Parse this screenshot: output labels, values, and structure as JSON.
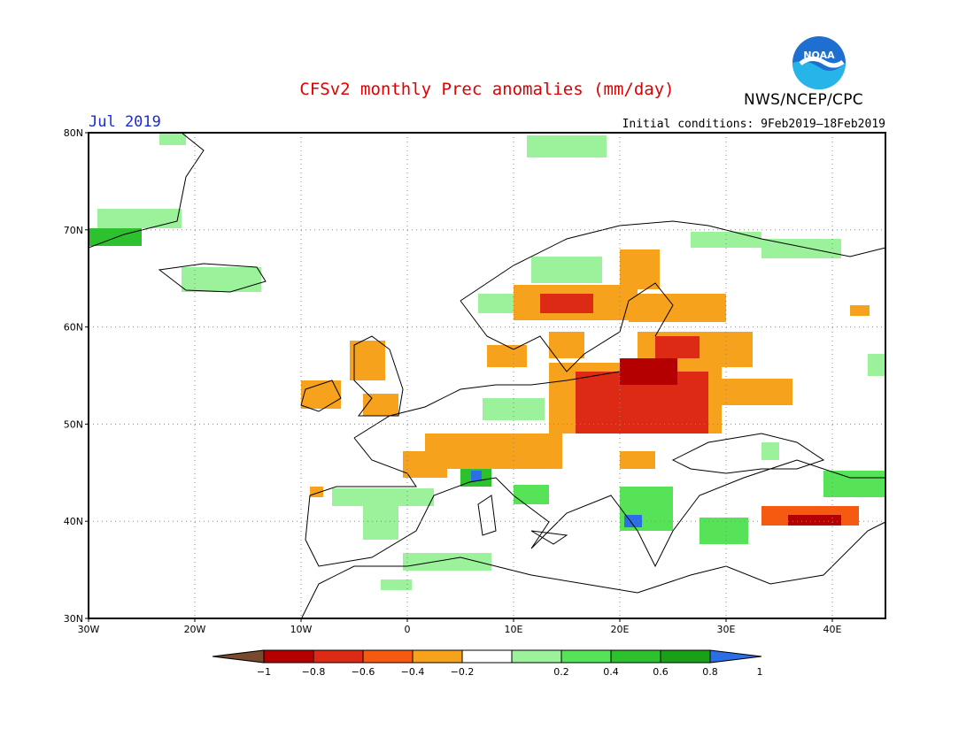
{
  "title": "CFSv2 monthly Prec anomalies (mm/day)",
  "organization": "NWS/NCEP/CPC",
  "logo": {
    "text": "NOAA",
    "icon": "noaa-logo-icon"
  },
  "month": "Jul 2019",
  "initial_conditions": "Initial conditions: 9Feb2019—18Feb2019",
  "axes": {
    "lat_labels": [
      "80N",
      "70N",
      "60N",
      "50N",
      "40N",
      "30N"
    ],
    "lon_labels": [
      "30W",
      "20W",
      "10W",
      "0",
      "10E",
      "20E",
      "30E",
      "40E"
    ]
  },
  "colorbar": {
    "colors": [
      "#7a4a2e",
      "#b40000",
      "#dc2a14",
      "#f55a10",
      "#f7a21c",
      "#ffffff",
      "#9bf29b",
      "#57e357",
      "#2ec12e",
      "#18a018",
      "#2b6ee6"
    ],
    "tick_labels": [
      "−1",
      "−0.8",
      "−0.6",
      "−0.4",
      "−0.2",
      "0.2",
      "0.4",
      "0.6",
      "0.8",
      "1"
    ]
  }
}
